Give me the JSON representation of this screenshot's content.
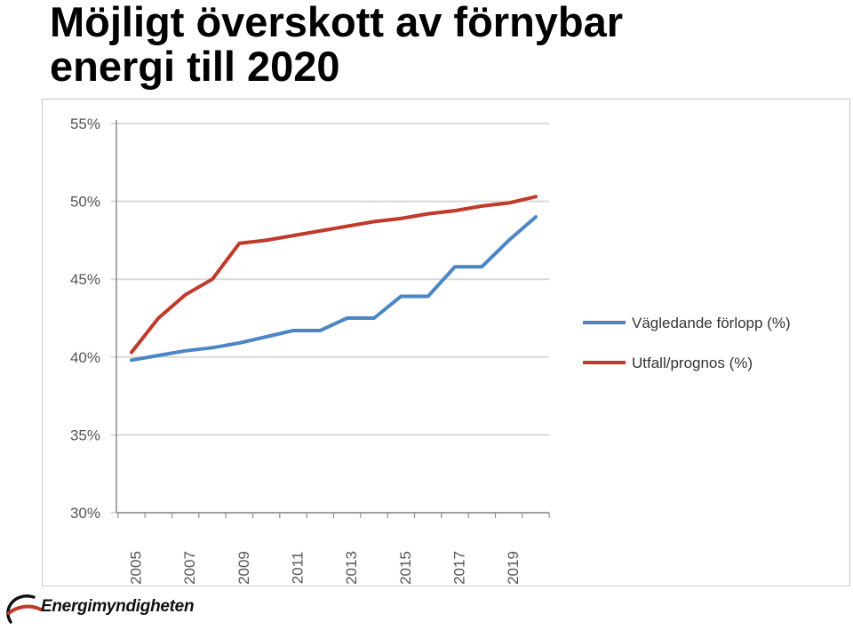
{
  "slide": {
    "title_line1": "Möjligt överskott av förnybar",
    "title_line2": "energi till 2020"
  },
  "logo": {
    "text": "Energimyndigheten"
  },
  "colors": {
    "series_blue": "#4a86c5",
    "series_red": "#c0392b",
    "grid": "#d9d9d9",
    "axis": "#8c8c8c"
  },
  "chart_data": {
    "type": "line",
    "title": "",
    "xlabel": "",
    "ylabel": "",
    "x": [
      2005,
      2006,
      2007,
      2008,
      2009,
      2010,
      2011,
      2012,
      2013,
      2014,
      2015,
      2016,
      2017,
      2018,
      2019,
      2020
    ],
    "x_tick_labels": [
      "2005",
      "2007",
      "2009",
      "2011",
      "2013",
      "2015",
      "2017",
      "2019"
    ],
    "y_tick_labels": [
      "55%",
      "50%",
      "45%",
      "40%",
      "35%",
      "30%"
    ],
    "ylim": [
      30,
      55
    ],
    "grid": true,
    "legend_position": "right",
    "series": [
      {
        "name": "Vägledande förlopp (%)",
        "color": "#4a86c5",
        "values": [
          39.8,
          40.1,
          40.4,
          40.6,
          40.9,
          41.3,
          41.7,
          41.7,
          42.5,
          42.5,
          43.9,
          43.9,
          45.8,
          45.8,
          47.5,
          49.0
        ]
      },
      {
        "name": "Utfall/prognos (%)",
        "color": "#c0392b",
        "values": [
          40.3,
          42.5,
          44.0,
          45.0,
          47.3,
          47.5,
          47.8,
          48.1,
          48.4,
          48.7,
          48.9,
          49.2,
          49.4,
          49.7,
          49.9,
          50.3
        ]
      }
    ]
  }
}
